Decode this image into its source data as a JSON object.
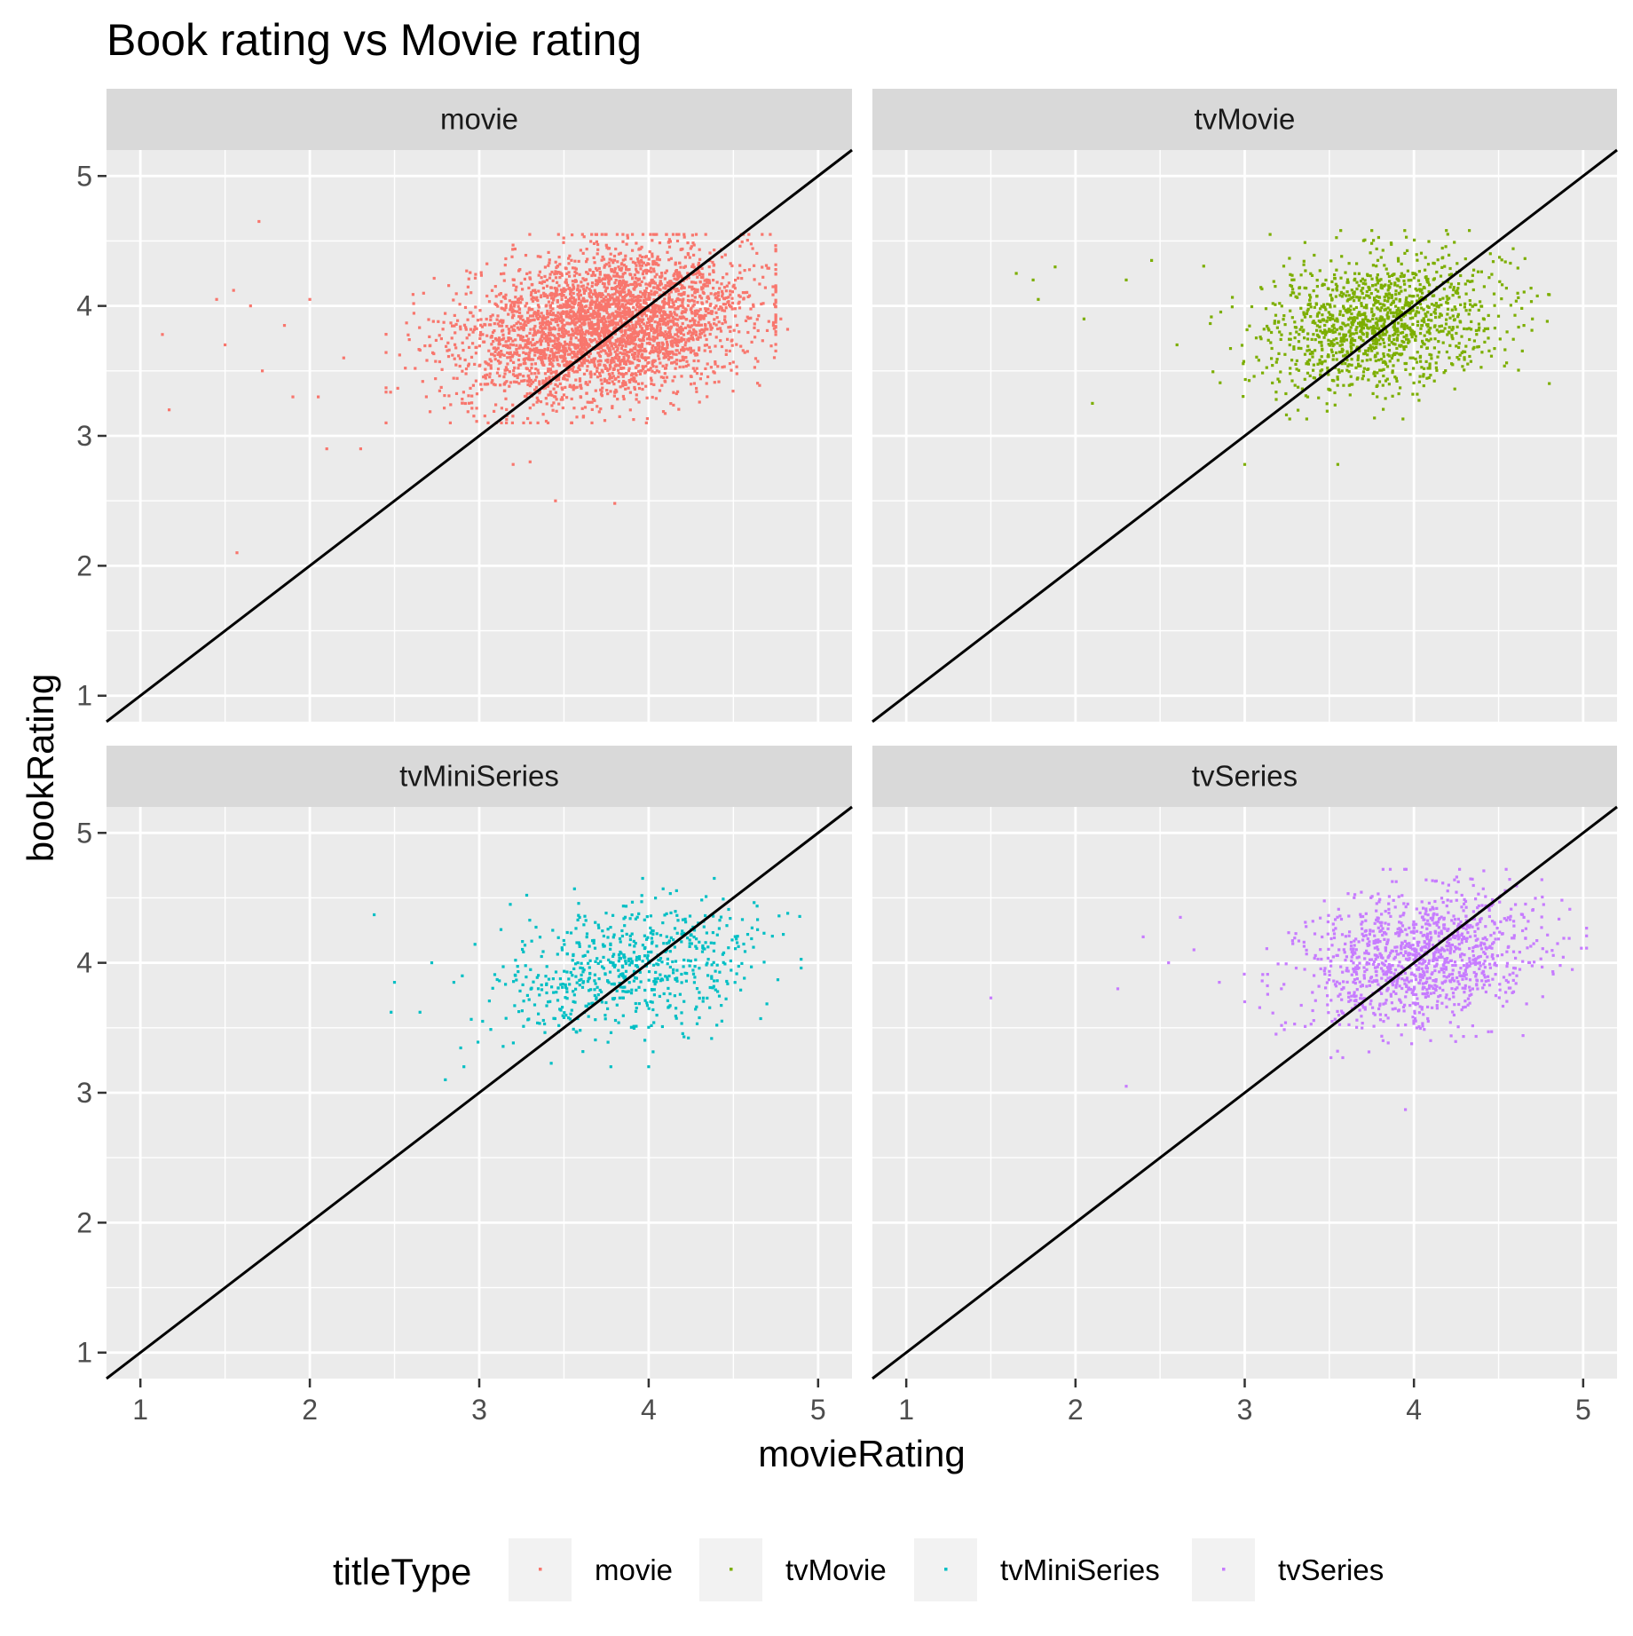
{
  "chart_data": {
    "type": "scatter",
    "title": "Book rating vs Movie rating",
    "xlabel": "movieRating",
    "ylabel": "bookRating",
    "xlim": [
      0.8,
      5.2
    ],
    "ylim": [
      0.8,
      5.2
    ],
    "x_ticks": [
      1,
      2,
      3,
      4,
      5
    ],
    "y_ticks": [
      1,
      2,
      3,
      4,
      5
    ],
    "x_tick_labels": [
      "1",
      "2",
      "3",
      "4",
      "5"
    ],
    "y_tick_labels": [
      "1",
      "2",
      "3",
      "4",
      "5"
    ],
    "grid": true,
    "reference_line": {
      "slope": 1,
      "intercept": 0,
      "color": "#000000"
    },
    "legend": {
      "title": "titleType",
      "position": "bottom",
      "entries": [
        "movie",
        "tvMovie",
        "tvMiniSeries",
        "tvSeries"
      ]
    },
    "panels": [
      {
        "name": "movie",
        "color": "#F8766D",
        "cluster": {
          "center_x": 3.75,
          "center_y": 3.85,
          "spread_x": 0.42,
          "spread_y": 0.28,
          "count": 3500
        },
        "points": [
          [
            1.13,
            3.78
          ],
          [
            1.17,
            3.2
          ],
          [
            1.45,
            4.05
          ],
          [
            1.5,
            3.7
          ],
          [
            1.55,
            4.12
          ],
          [
            1.57,
            2.1
          ],
          [
            1.7,
            4.65
          ],
          [
            1.65,
            4.0
          ],
          [
            1.72,
            3.5
          ],
          [
            1.85,
            3.85
          ],
          [
            1.9,
            3.3
          ],
          [
            2.0,
            4.05
          ],
          [
            2.1,
            2.9
          ],
          [
            2.3,
            2.9
          ],
          [
            3.2,
            2.78
          ],
          [
            3.3,
            2.8
          ],
          [
            3.45,
            2.5
          ],
          [
            3.8,
            2.48
          ],
          [
            4.78,
            3.9
          ],
          [
            4.82,
            3.82
          ],
          [
            2.05,
            3.3
          ],
          [
            2.2,
            3.6
          ]
        ]
      },
      {
        "name": "tvMovie",
        "color": "#7CAE00",
        "cluster": {
          "center_x": 3.8,
          "center_y": 3.88,
          "spread_x": 0.35,
          "spread_y": 0.25,
          "count": 1300
        },
        "points": [
          [
            1.65,
            4.25
          ],
          [
            1.75,
            4.2
          ],
          [
            1.78,
            4.05
          ],
          [
            1.88,
            4.3
          ],
          [
            2.05,
            3.9
          ],
          [
            2.1,
            3.25
          ],
          [
            2.3,
            4.2
          ],
          [
            2.45,
            4.35
          ],
          [
            2.6,
            3.7
          ],
          [
            3.0,
            2.78
          ],
          [
            3.15,
            4.55
          ],
          [
            3.55,
            2.78
          ],
          [
            4.55,
            3.8
          ],
          [
            4.65,
            3.85
          ],
          [
            4.7,
            3.9
          ]
        ]
      },
      {
        "name": "tvMiniSeries",
        "color": "#00BFC4",
        "cluster": {
          "center_x": 3.9,
          "center_y": 3.95,
          "spread_x": 0.38,
          "spread_y": 0.25,
          "count": 650
        },
        "points": [
          [
            2.38,
            4.37
          ],
          [
            2.48,
            3.62
          ],
          [
            2.5,
            3.85
          ],
          [
            2.65,
            3.62
          ],
          [
            2.72,
            4.0
          ],
          [
            2.8,
            3.1
          ],
          [
            2.85,
            3.85
          ],
          [
            2.9,
            3.9
          ],
          [
            3.02,
            3.55
          ],
          [
            3.28,
            4.52
          ],
          [
            4.0,
            3.2
          ]
        ]
      },
      {
        "name": "tvSeries",
        "color": "#C77CFF",
        "cluster": {
          "center_x": 4.02,
          "center_y": 4.02,
          "spread_x": 0.35,
          "spread_y": 0.25,
          "count": 1200
        },
        "points": [
          [
            1.5,
            3.73
          ],
          [
            2.25,
            3.8
          ],
          [
            2.3,
            3.05
          ],
          [
            2.4,
            4.2
          ],
          [
            2.55,
            4.0
          ],
          [
            2.62,
            4.35
          ],
          [
            2.7,
            4.1
          ],
          [
            2.85,
            3.85
          ],
          [
            3.0,
            3.7
          ],
          [
            3.95,
            2.87
          ],
          [
            4.65,
            4.35
          ],
          [
            4.75,
            4.03
          ]
        ]
      }
    ]
  }
}
